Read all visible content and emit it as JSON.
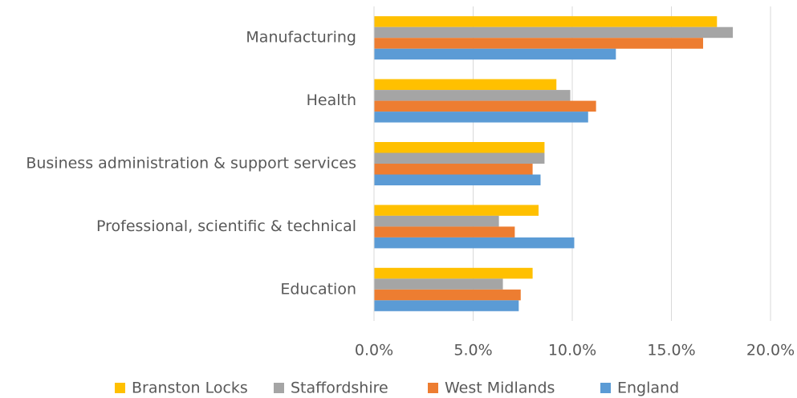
{
  "chart_data": {
    "type": "hbar",
    "categories": [
      "Manufacturing",
      "Health",
      "Business administration & support services",
      "Professional, scientific & technical",
      "Education"
    ],
    "series": [
      {
        "name": "Branston Locks",
        "color": "#ffc000",
        "values": [
          17.3,
          9.2,
          8.6,
          8.3,
          8.0
        ]
      },
      {
        "name": "Staffordshire",
        "color": "#a5a5a5",
        "values": [
          18.1,
          9.9,
          8.6,
          6.3,
          6.5
        ]
      },
      {
        "name": "West Midlands",
        "color": "#ed7d31",
        "values": [
          16.6,
          11.2,
          8.0,
          7.1,
          7.4
        ]
      },
      {
        "name": "England",
        "color": "#5b9bd5",
        "values": [
          12.2,
          10.8,
          8.4,
          10.1,
          7.3
        ]
      }
    ],
    "xlim": [
      0,
      20
    ],
    "xticks": [
      {
        "value": 0,
        "label": "0.0%"
      },
      {
        "value": 5,
        "label": "5.0%"
      },
      {
        "value": 10,
        "label": "10.0%"
      },
      {
        "value": 15,
        "label": "15.0%"
      },
      {
        "value": 20,
        "label": "20.0%"
      }
    ],
    "grid": true,
    "legend": "bottom"
  }
}
